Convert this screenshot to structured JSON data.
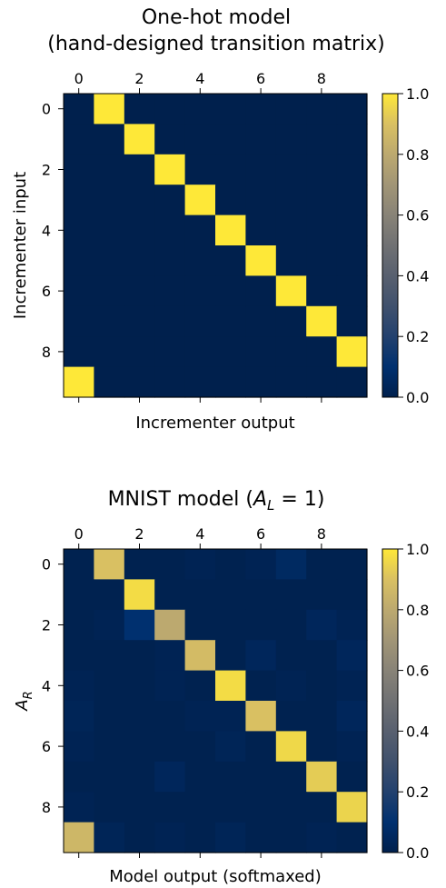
{
  "chart_data": [
    {
      "type": "heatmap",
      "title_line1": "One-hot model",
      "title_line2": "(hand-designed transition matrix)",
      "xlabel": "Incrementer output",
      "ylabel": "Incrementer input",
      "xticks": [
        0,
        2,
        4,
        6,
        8
      ],
      "yticks": [
        0,
        2,
        4,
        6,
        8
      ],
      "colorbar_ticks": [
        "0.0",
        "0.2",
        "0.4",
        "0.6",
        "0.8",
        "1.0"
      ],
      "zlim": [
        0,
        1
      ],
      "colormap": "cividis",
      "matrix": [
        [
          0,
          1,
          0,
          0,
          0,
          0,
          0,
          0,
          0,
          0
        ],
        [
          0,
          0,
          1,
          0,
          0,
          0,
          0,
          0,
          0,
          0
        ],
        [
          0,
          0,
          0,
          1,
          0,
          0,
          0,
          0,
          0,
          0
        ],
        [
          0,
          0,
          0,
          0,
          1,
          0,
          0,
          0,
          0,
          0
        ],
        [
          0,
          0,
          0,
          0,
          0,
          1,
          0,
          0,
          0,
          0
        ],
        [
          0,
          0,
          0,
          0,
          0,
          0,
          1,
          0,
          0,
          0
        ],
        [
          0,
          0,
          0,
          0,
          0,
          0,
          0,
          1,
          0,
          0
        ],
        [
          0,
          0,
          0,
          0,
          0,
          0,
          0,
          0,
          1,
          0
        ],
        [
          0,
          0,
          0,
          0,
          0,
          0,
          0,
          0,
          0,
          1
        ],
        [
          1,
          0,
          0,
          0,
          0,
          0,
          0,
          0,
          0,
          0
        ]
      ]
    },
    {
      "type": "heatmap",
      "title_prefix": "MNIST model (",
      "title_math_var": "A",
      "title_math_sub": "L",
      "title_math_rest": " = 1)",
      "xlabel": "Model output (softmaxed)",
      "ylabel_var": "A",
      "ylabel_sub": "R",
      "xticks": [
        0,
        2,
        4,
        6,
        8
      ],
      "yticks": [
        0,
        2,
        4,
        6,
        8
      ],
      "colorbar_ticks": [
        "0.0",
        "0.2",
        "0.4",
        "0.6",
        "0.8",
        "1.0"
      ],
      "zlim": [
        0,
        1
      ],
      "colormap": "cividis",
      "matrix": [
        [
          0.01,
          0.9,
          0.01,
          0.01,
          0.02,
          0.01,
          0.02,
          0.06,
          0.01,
          0.01
        ],
        [
          0.01,
          0.01,
          0.97,
          0.01,
          0.01,
          0.01,
          0.01,
          0.01,
          0.01,
          0.01
        ],
        [
          0.01,
          0.02,
          0.1,
          0.8,
          0.01,
          0.01,
          0.01,
          0.01,
          0.04,
          0.02
        ],
        [
          0.01,
          0.01,
          0.01,
          0.02,
          0.88,
          0.01,
          0.04,
          0.01,
          0.01,
          0.04
        ],
        [
          0.02,
          0.01,
          0.01,
          0.02,
          0.01,
          0.97,
          0.01,
          0.02,
          0.01,
          0.02
        ],
        [
          0.03,
          0.01,
          0.01,
          0.01,
          0.02,
          0.02,
          0.9,
          0.01,
          0.01,
          0.04
        ],
        [
          0.02,
          0.01,
          0.01,
          0.01,
          0.01,
          0.03,
          0.01,
          0.96,
          0.01,
          0.02
        ],
        [
          0.01,
          0.01,
          0.01,
          0.04,
          0.01,
          0.01,
          0.01,
          0.01,
          0.93,
          0.01
        ],
        [
          0.02,
          0.01,
          0.01,
          0.01,
          0.01,
          0.01,
          0.01,
          0.01,
          0.01,
          0.95
        ],
        [
          0.86,
          0.03,
          0.01,
          0.02,
          0.01,
          0.03,
          0.01,
          0.01,
          0.02,
          0.01
        ]
      ]
    }
  ]
}
